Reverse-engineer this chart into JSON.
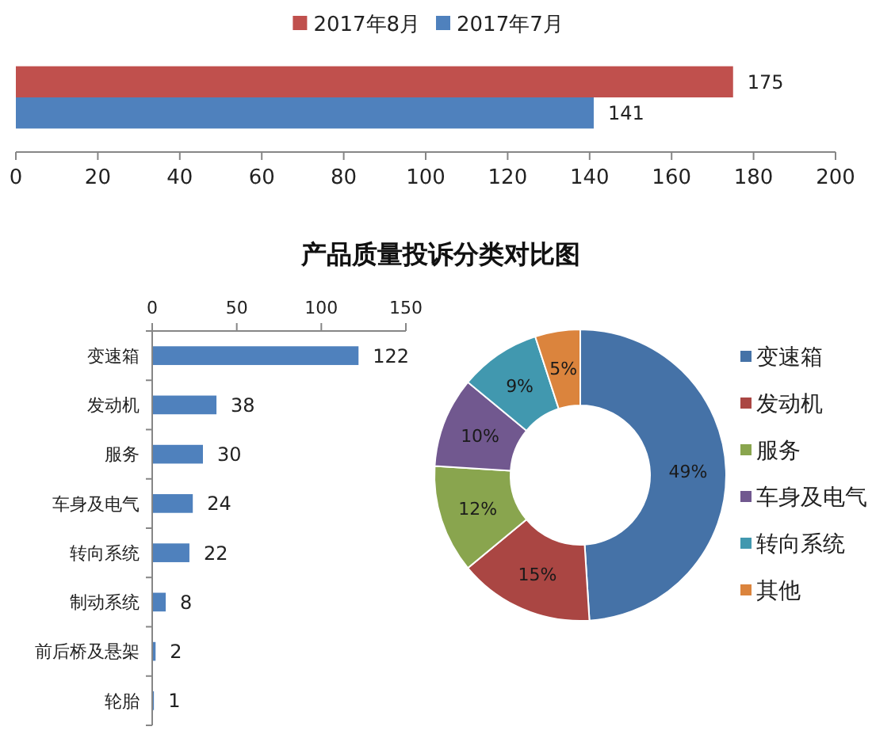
{
  "chart_data": [
    {
      "type": "bar",
      "orientation": "horizontal",
      "categories": [
        null
      ],
      "series": [
        {
          "name": "2017年8月",
          "color": "#c0504d",
          "values": [
            175
          ]
        },
        {
          "name": "2017年7月",
          "color": "#4f81bd",
          "values": [
            141
          ]
        }
      ],
      "xlim": [
        0,
        200
      ],
      "xticks": [
        0,
        20,
        40,
        60,
        80,
        100,
        120,
        140,
        160,
        180,
        200
      ],
      "legend": "top",
      "data_labels": true
    },
    {
      "type": "bar",
      "orientation": "horizontal",
      "title": "产品质量投诉分类对比图",
      "categories": [
        "变速箱",
        "发动机",
        "服务",
        "车身及电气",
        "转向系统",
        "制动系统",
        "前后桥及悬架",
        "轮胎"
      ],
      "values": [
        122,
        38,
        30,
        24,
        22,
        8,
        2,
        1
      ],
      "color": "#4f81bd",
      "xlim": [
        0,
        150
      ],
      "xticks": [
        0,
        50,
        100,
        150
      ],
      "data_labels": true
    },
    {
      "type": "donut",
      "categories": [
        "变速箱",
        "发动机",
        "服务",
        "车身及电气",
        "转向系统",
        "其他"
      ],
      "values": [
        49,
        15,
        12,
        10,
        9,
        5
      ],
      "colors": [
        "#4572a7",
        "#aa4643",
        "#89a54e",
        "#71588f",
        "#4198af",
        "#db843d"
      ],
      "value_labels": [
        "49%",
        "15%",
        "12%",
        "10%",
        "9%",
        "5%"
      ],
      "legend": "right"
    }
  ]
}
